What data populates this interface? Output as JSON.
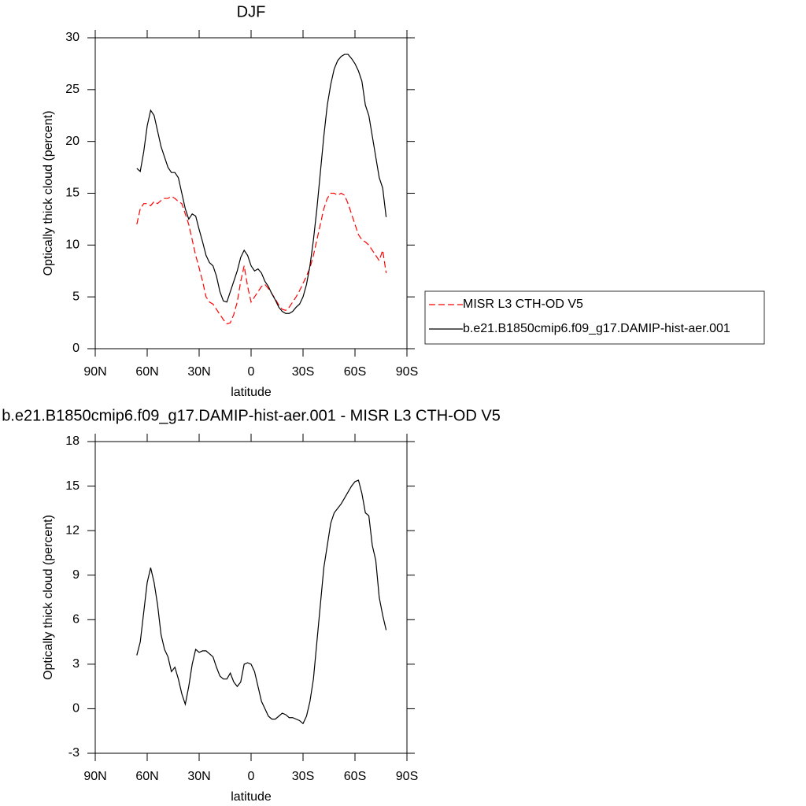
{
  "chart_data": [
    {
      "type": "line",
      "title": "DJF",
      "xlabel": "latitude",
      "ylabel": "Optically thick cloud (percent)",
      "x": [
        66,
        64,
        62,
        60,
        58,
        56,
        54,
        52,
        50,
        48,
        46,
        44,
        42,
        40,
        38,
        36,
        34,
        32,
        30,
        28,
        26,
        24,
        22,
        20,
        18,
        16,
        14,
        12,
        10,
        8,
        6,
        4,
        2,
        0,
        -2,
        -4,
        -6,
        -8,
        -10,
        -12,
        -14,
        -16,
        -18,
        -20,
        -22,
        -24,
        -26,
        -28,
        -30,
        -32,
        -34,
        -36,
        -38,
        -40,
        -42,
        -44,
        -46,
        -48,
        -50,
        -52,
        -54,
        -56,
        -58,
        -60,
        -62,
        -64,
        -66,
        -68,
        -70,
        -72,
        -74,
        -76,
        -78
      ],
      "series": [
        {
          "name": "MISR L3 CTH-OD V5",
          "color": "#ff0000",
          "dash": "dashed",
          "values": [
            12,
            13.5,
            14,
            14,
            13.8,
            14.2,
            14,
            14.3,
            14.5,
            14.5,
            14.7,
            14.5,
            14.2,
            14,
            13,
            12,
            10.5,
            9,
            7.8,
            6.5,
            5,
            4.5,
            4.3,
            3.8,
            3.3,
            2.8,
            2.4,
            2.5,
            3.3,
            4.5,
            6.5,
            8,
            6,
            4.5,
            5,
            5.5,
            6,
            6.2,
            5.8,
            5.3,
            4.8,
            4.2,
            3.8,
            3.7,
            4,
            4.5,
            5,
            5.6,
            6.3,
            7,
            7.8,
            9,
            10.5,
            12,
            13.5,
            14.5,
            15,
            15,
            14.8,
            15,
            14.8,
            14,
            13,
            12,
            11,
            10.5,
            10.3,
            10,
            9.5,
            9,
            8.5,
            9.5,
            7.3
          ]
        },
        {
          "name": "b.e21.B1850cmip6.f09_g17.DAMIP-hist-aer.001",
          "color": "#000000",
          "dash": "solid",
          "values": [
            17.4,
            17.1,
            19,
            21.5,
            23,
            22.5,
            21,
            19.5,
            18.5,
            17.5,
            17,
            17,
            16.5,
            15,
            13.5,
            12.5,
            13,
            12.8,
            11.5,
            10.3,
            9,
            8.3,
            8,
            7,
            5.5,
            4.6,
            4.5,
            5.5,
            6.5,
            7.5,
            8.8,
            9.5,
            9,
            8,
            7.5,
            7.7,
            7.3,
            6.5,
            6,
            5.3,
            4.7,
            4,
            3.6,
            3.4,
            3.4,
            3.6,
            4,
            4.3,
            5,
            6.2,
            8,
            10.5,
            13.5,
            17,
            20.5,
            23.5,
            25.5,
            27,
            27.8,
            28.2,
            28.4,
            28.4,
            28,
            27.5,
            26.8,
            25.8,
            23.5,
            22.5,
            20.5,
            18.5,
            16.5,
            15.5,
            12.7
          ]
        }
      ],
      "xlim": [
        90,
        -90
      ],
      "xticks": [
        {
          "value": 90,
          "label": "90N"
        },
        {
          "value": 60,
          "label": "60N"
        },
        {
          "value": 30,
          "label": "30N"
        },
        0,
        {
          "value": -30,
          "label": "30S"
        },
        {
          "value": -60,
          "label": "60S"
        },
        {
          "value": -90,
          "label": "90S"
        }
      ],
      "ylim": [
        0,
        30
      ],
      "yticks": [
        0,
        5,
        10,
        15,
        20,
        25,
        30
      ],
      "legend": "right"
    },
    {
      "type": "line",
      "title": "b.e21.B1850cmip6.f09_g17.DAMIP-hist-aer.001 - MISR L3 CTH-OD V5",
      "xlabel": "latitude",
      "ylabel": "Optically thick cloud (percent)",
      "x": [
        66,
        64,
        62,
        60,
        58,
        56,
        54,
        52,
        50,
        48,
        46,
        44,
        42,
        40,
        38,
        36,
        34,
        32,
        30,
        28,
        26,
        24,
        22,
        20,
        18,
        16,
        14,
        12,
        10,
        8,
        6,
        4,
        2,
        0,
        -2,
        -4,
        -6,
        -8,
        -10,
        -12,
        -14,
        -16,
        -18,
        -20,
        -22,
        -24,
        -26,
        -28,
        -30,
        -32,
        -34,
        -36,
        -38,
        -40,
        -42,
        -44,
        -46,
        -48,
        -50,
        -52,
        -54,
        -56,
        -58,
        -60,
        -62,
        -64,
        -66,
        -68,
        -70,
        -72,
        -74,
        -76,
        -78
      ],
      "series": [
        {
          "color": "#000000",
          "dash": "solid",
          "values": [
            3.6,
            4.5,
            6.5,
            8.5,
            9.5,
            8.5,
            7,
            5,
            4,
            3.5,
            2.5,
            2.8,
            2,
            1,
            0.3,
            1.5,
            3,
            4,
            3.8,
            3.9,
            3.9,
            3.7,
            3.5,
            2.8,
            2.2,
            2,
            2,
            2.4,
            1.8,
            1.5,
            1.8,
            3,
            3.1,
            3,
            2.5,
            1.5,
            0.5,
            0,
            -0.5,
            -0.7,
            -0.7,
            -0.5,
            -0.3,
            -0.4,
            -0.6,
            -0.6,
            -0.7,
            -0.8,
            -1,
            -0.5,
            0.5,
            2,
            4.5,
            7,
            9.5,
            11,
            12.5,
            13.2,
            13.5,
            13.8,
            14.2,
            14.6,
            15,
            15.3,
            15.4,
            14.5,
            13.2,
            13,
            11,
            10,
            7.5,
            6.3,
            5.3
          ]
        }
      ],
      "xlim": [
        90,
        -90
      ],
      "xticks": [
        {
          "value": 90,
          "label": "90N"
        },
        {
          "value": 60,
          "label": "60N"
        },
        {
          "value": 30,
          "label": "30N"
        },
        0,
        {
          "value": -30,
          "label": "30S"
        },
        {
          "value": -60,
          "label": "60S"
        },
        {
          "value": -90,
          "label": "90S"
        }
      ],
      "ylim": [
        -3,
        18
      ],
      "yticks": [
        -3,
        0,
        3,
        6,
        9,
        12,
        15,
        18
      ]
    }
  ]
}
